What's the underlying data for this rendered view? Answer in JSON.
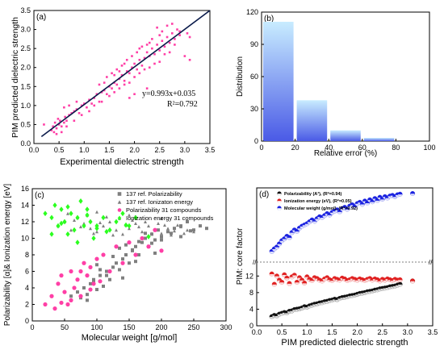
{
  "chart_data": [
    {
      "panel": "(a)",
      "type": "scatter",
      "xlabel": "Experimental  dielectric strength",
      "ylabel": "PIM predicted dielectric strength",
      "xlim": [
        0.0,
        3.5
      ],
      "ylim": [
        0.0,
        3.5
      ],
      "xticks": [
        "0.0",
        "0.5",
        "1.0",
        "1.5",
        "2.0",
        "2.5",
        "3.0",
        "3.5"
      ],
      "yticks": [
        "0.0",
        "0.5",
        "1.0",
        "1.5",
        "2.0",
        "2.5",
        "3.0",
        "3.5"
      ],
      "fit_label": "y=0.993x+0.035",
      "r2_label": "R²=0.792",
      "fit": {
        "slope": 0.993,
        "intercept": 0.035
      },
      "colors": {
        "points": "#ff3fa6",
        "line": "#0a1a4a"
      },
      "x": [
        0.2,
        0.35,
        0.38,
        0.4,
        0.42,
        0.45,
        0.48,
        0.5,
        0.52,
        0.55,
        0.6,
        0.62,
        0.65,
        0.7,
        0.75,
        0.8,
        0.85,
        0.9,
        0.95,
        1.0,
        1.05,
        1.1,
        1.15,
        1.2,
        1.25,
        1.3,
        1.35,
        1.4,
        1.45,
        1.5,
        1.55,
        1.6,
        1.65,
        1.7,
        1.75,
        1.8,
        1.85,
        1.9,
        1.95,
        2.0,
        2.05,
        2.1,
        2.15,
        2.2,
        2.25,
        2.3,
        2.35,
        2.4,
        2.45,
        2.5,
        2.55,
        2.6,
        2.65,
        2.7,
        2.75,
        2.8,
        2.85,
        2.9,
        3.0,
        3.1,
        0.45,
        0.55,
        0.65,
        0.8,
        0.95,
        1.1,
        1.2,
        1.35,
        1.5,
        1.6,
        1.7,
        1.8,
        1.9,
        2.0,
        2.1,
        2.2,
        2.3,
        2.4,
        2.5,
        2.6,
        2.7,
        2.8,
        3.05,
        3.1,
        1.45,
        1.55,
        1.65,
        1.75,
        1.85,
        1.95,
        2.05,
        2.15,
        2.25,
        2.35,
        1.3,
        1.4,
        1.6,
        1.7,
        1.8,
        2.1,
        2.3,
        2.5,
        2.65,
        2.45,
        2.55,
        2.75,
        2.9,
        2.25,
        2.0,
        1.9,
        0.6,
        0.7,
        0.85
      ],
      "y": [
        0.5,
        0.35,
        0.45,
        0.3,
        0.55,
        0.4,
        0.65,
        0.5,
        0.6,
        0.45,
        0.55,
        0.7,
        0.6,
        0.75,
        0.8,
        0.85,
        0.9,
        0.8,
        1.0,
        1.05,
        0.95,
        1.15,
        1.05,
        1.2,
        1.3,
        1.1,
        1.35,
        1.4,
        1.3,
        1.5,
        1.45,
        1.6,
        1.55,
        1.7,
        1.8,
        1.65,
        1.9,
        1.85,
        2.0,
        2.1,
        1.95,
        2.2,
        2.05,
        2.25,
        2.4,
        2.3,
        2.5,
        2.35,
        2.6,
        2.45,
        2.7,
        2.55,
        2.8,
        2.65,
        2.9,
        2.75,
        3.0,
        2.85,
        2.3,
        2.2,
        0.25,
        0.3,
        0.45,
        0.6,
        0.75,
        0.85,
        1.0,
        1.1,
        1.25,
        1.35,
        1.45,
        1.55,
        1.6,
        1.75,
        1.85,
        1.95,
        2.0,
        2.1,
        2.15,
        2.35,
        2.4,
        2.6,
        2.9,
        2.8,
        1.75,
        1.85,
        1.95,
        2.05,
        2.2,
        2.3,
        2.4,
        2.55,
        2.6,
        2.75,
        1.55,
        1.6,
        1.8,
        1.9,
        2.1,
        2.5,
        2.65,
        2.85,
        3.1,
        3.05,
        2.95,
        3.15,
        2.95,
        1.45,
        1.3,
        1.2,
        0.95,
        1.0,
        1.1
      ]
    },
    {
      "panel": "(b)",
      "type": "bar",
      "xlabel": "Relative error (%)",
      "ylabel": "Distribution",
      "xlim": [
        0,
        100
      ],
      "ylim": [
        0,
        120
      ],
      "xticks": [
        "0",
        "20",
        "40",
        "60",
        "80",
        "100"
      ],
      "yticks": [
        "0",
        "30",
        "60",
        "90",
        "120"
      ],
      "bins": [
        [
          0,
          20
        ],
        [
          20,
          40
        ],
        [
          40,
          60
        ],
        [
          60,
          80
        ]
      ],
      "values": [
        111,
        38,
        10,
        3
      ],
      "colors": {
        "top": "#c8ecff",
        "bottom": "#4a5ae6"
      }
    },
    {
      "panel": "(c)",
      "type": "scatter",
      "xlabel": "Molecular weight [g/mol]",
      "ylabel": "Polarizability [α]& Ionization energy [eV]",
      "xlim": [
        0,
        300
      ],
      "ylim": [
        0,
        16
      ],
      "xticks": [
        "0",
        "50",
        "100",
        "150",
        "200",
        "250",
        "300"
      ],
      "yticks": [
        "0",
        "2",
        "4",
        "6",
        "8",
        "10",
        "12",
        "14",
        "16"
      ],
      "series": [
        {
          "name": "137 ref. Polarizability",
          "color": "#7f7f7f",
          "marker": "square",
          "x": [
            60,
            70,
            80,
            85,
            90,
            95,
            100,
            105,
            110,
            115,
            120,
            125,
            130,
            135,
            140,
            145,
            150,
            155,
            160,
            165,
            170,
            175,
            180,
            185,
            190,
            195,
            200,
            210,
            220,
            230,
            240,
            250,
            260,
            270,
            85,
            95,
            105,
            115,
            125,
            135,
            145,
            155,
            165,
            175,
            185,
            200,
            215,
            230,
            245,
            75,
            100,
            140,
            160,
            190
          ],
          "y": [
            3.0,
            3.5,
            4.0,
            2.5,
            4.5,
            5.0,
            3.8,
            5.5,
            4.2,
            6.0,
            5.0,
            6.5,
            7.0,
            6.2,
            7.5,
            8.0,
            7.0,
            8.5,
            9.0,
            8.0,
            9.5,
            10.0,
            9.0,
            10.5,
            9.8,
            11.0,
            10.2,
            10.8,
            11.2,
            11.5,
            12.0,
            11.0,
            11.5,
            11.2,
            3.2,
            4.8,
            6.2,
            5.5,
            7.8,
            8.8,
            9.2,
            8.6,
            9.6,
            10.6,
            9.4,
            9.8,
            10.6,
            10.2,
            10.9,
            2.8,
            6.8,
            5.2,
            7.2,
            8.2
          ]
        },
        {
          "name": "137 ref. Ionizaton energy",
          "color": "#7f7f7f",
          "marker": "triangle",
          "x": [
            40,
            50,
            60,
            70,
            80,
            90,
            100,
            110,
            120,
            130,
            140,
            150,
            160,
            170,
            180,
            190,
            200,
            210,
            220,
            230,
            240,
            250,
            65,
            75,
            85,
            95,
            105,
            115,
            125,
            135,
            145,
            155,
            165,
            175,
            185,
            195,
            205,
            215,
            225,
            235,
            55,
            100,
            150,
            200
          ],
          "y": [
            11.5,
            12.0,
            11.0,
            12.5,
            11.8,
            11.2,
            10.8,
            11.5,
            12.0,
            11.0,
            10.5,
            11.2,
            11.8,
            10.8,
            11.5,
            11.0,
            10.6,
            11.2,
            10.9,
            11.4,
            11.0,
            10.8,
            12.2,
            11.4,
            12.8,
            10.6,
            11.9,
            12.6,
            10.4,
            12.4,
            11.6,
            12.2,
            11.4,
            12.0,
            10.6,
            11.8,
            11.6,
            10.4,
            11.6,
            10.6,
            13.0,
            13.2,
            12.8,
            12.4
          ]
        },
        {
          "name": "Polarizability 31 compounds",
          "color": "#ff3fa6",
          "marker": "circle",
          "x": [
            20,
            30,
            35,
            40,
            45,
            50,
            55,
            60,
            65,
            70,
            75,
            80,
            85,
            90,
            95,
            100,
            110,
            120,
            130,
            140,
            150,
            160,
            170,
            180,
            190,
            200,
            45,
            60,
            75,
            90,
            105
          ],
          "y": [
            2.0,
            3.0,
            1.5,
            4.5,
            2.2,
            3.5,
            2.0,
            6.0,
            4.0,
            5.0,
            3.0,
            7.0,
            5.5,
            6.5,
            4.5,
            7.5,
            8.0,
            6.0,
            9.0,
            7.0,
            9.5,
            8.0,
            10.0,
            9.0,
            11.0,
            8.5,
            5.5,
            2.5,
            6.0,
            3.8,
            4.8
          ]
        },
        {
          "name": "Ionization energy 31 compounds",
          "color": "#2bff1f",
          "marker": "diamond",
          "x": [
            20,
            30,
            35,
            40,
            45,
            50,
            55,
            60,
            65,
            70,
            75,
            80,
            85,
            90,
            95,
            100,
            110,
            120,
            130,
            140,
            150,
            160,
            30,
            45,
            55,
            70,
            85,
            100,
            115,
            145,
            180
          ],
          "y": [
            13.0,
            12.5,
            14.0,
            11.5,
            13.5,
            12.0,
            10.5,
            13.0,
            11.0,
            12.5,
            14.5,
            11.5,
            13.5,
            12.0,
            10.0,
            11.5,
            12.5,
            11.0,
            12.0,
            13.0,
            11.5,
            12.5,
            10.5,
            11.8,
            13.8,
            9.5,
            12.8,
            11.2,
            10.8,
            11.6,
            10.2
          ]
        }
      ]
    },
    {
      "panel": "(d)",
      "type": "scatter",
      "xlabel": "PIM predicted dielectric strength",
      "ylabel": "PIM: core factor",
      "xlim": [
        0.0,
        3.5
      ],
      "xticks": [
        "0.0",
        "0.5",
        "1.0",
        "1.5",
        "2.0",
        "2.5",
        "3.0",
        "3.5"
      ],
      "yticks_lower": [
        "0",
        "4",
        "8",
        "12"
      ],
      "ylim_lower": [
        0,
        14
      ],
      "axis_break": true,
      "series": [
        {
          "name": "Polarizability (A³), (R²=0.94)",
          "color": "#111111",
          "x": [
            0.3,
            0.35,
            0.4,
            0.45,
            0.5,
            0.55,
            0.6,
            0.65,
            0.7,
            0.75,
            0.8,
            0.85,
            0.9,
            0.95,
            1.0,
            1.05,
            1.1,
            1.15,
            1.2,
            1.25,
            1.3,
            1.35,
            1.4,
            1.45,
            1.5,
            1.55,
            1.6,
            1.65,
            1.7,
            1.75,
            1.8,
            1.85,
            1.9,
            1.95,
            2.0,
            2.05,
            2.1,
            2.15,
            2.2,
            2.25,
            2.3,
            2.35,
            2.4,
            2.45,
            2.5,
            2.55,
            2.6,
            2.65,
            2.7,
            2.75,
            2.8,
            2.85,
            3.1
          ],
          "y": [
            2.2,
            2.5,
            2.4,
            2.8,
            3.0,
            3.2,
            3.1,
            3.5,
            3.6,
            3.9,
            4.0,
            4.1,
            4.3,
            4.6,
            4.5,
            4.8,
            5.0,
            5.2,
            5.3,
            5.5,
            5.6,
            5.8,
            5.9,
            6.1,
            6.2,
            6.4,
            6.3,
            6.6,
            6.8,
            6.9,
            7.0,
            7.2,
            7.3,
            7.4,
            7.6,
            7.8,
            7.9,
            8.0,
            8.2,
            8.3,
            8.4,
            8.6,
            8.7,
            8.9,
            9.0,
            9.1,
            9.2,
            9.4,
            9.5,
            9.6,
            9.8,
            10.0,
            10.8
          ]
        },
        {
          "name": "Ionization energy (eV), (R²=0.05)",
          "color": "#e02020",
          "x": [
            0.3,
            0.35,
            0.4,
            0.45,
            0.5,
            0.55,
            0.6,
            0.65,
            0.7,
            0.75,
            0.8,
            0.85,
            0.9,
            0.95,
            1.0,
            1.05,
            1.1,
            1.15,
            1.2,
            1.25,
            1.3,
            1.35,
            1.4,
            1.45,
            1.5,
            1.55,
            1.6,
            1.65,
            1.7,
            1.75,
            1.8,
            1.85,
            1.9,
            1.95,
            2.0,
            2.05,
            2.1,
            2.15,
            2.2,
            2.25,
            2.3,
            2.35,
            2.4,
            2.45,
            2.5,
            2.55,
            2.6,
            2.65,
            2.7,
            2.75,
            2.8,
            2.85,
            3.1
          ],
          "y": [
            12.5,
            10.0,
            12.0,
            11.0,
            10.5,
            12.3,
            11.5,
            10.2,
            11.8,
            12.2,
            10.5,
            11.6,
            11.0,
            10.3,
            11.8,
            11.2,
            10.9,
            11.6,
            11.4,
            11.0,
            10.8,
            11.3,
            11.6,
            11.1,
            10.9,
            11.4,
            11.2,
            11.0,
            11.5,
            11.3,
            10.9,
            11.1,
            11.4,
            11.2,
            11.0,
            11.3,
            11.1,
            10.9,
            11.2,
            11.4,
            11.0,
            11.3,
            11.1,
            10.8,
            11.2,
            11.0,
            11.3,
            11.1,
            10.9,
            11.2,
            11.0,
            11.1,
            10.8
          ]
        },
        {
          "name": "Molecular weight (g/mol), (R²=0.92)",
          "color": "#1a22e0",
          "x": [
            0.3,
            0.35,
            0.4,
            0.45,
            0.5,
            0.55,
            0.6,
            0.65,
            0.7,
            0.75,
            0.8,
            0.85,
            0.9,
            0.95,
            1.0,
            1.05,
            1.1,
            1.15,
            1.2,
            1.25,
            1.3,
            1.35,
            1.4,
            1.45,
            1.5,
            1.55,
            1.6,
            1.65,
            1.7,
            1.75,
            1.8,
            1.85,
            1.9,
            1.95,
            2.0,
            2.05,
            2.1,
            2.15,
            2.2,
            2.25,
            2.3,
            2.35,
            2.4,
            2.45,
            2.5,
            2.55,
            2.6,
            2.65,
            2.7,
            2.75,
            2.8,
            2.85,
            3.1
          ],
          "y": [
            0.08,
            0.12,
            0.15,
            0.2,
            0.25,
            0.28,
            0.32,
            0.3,
            0.38,
            0.42,
            0.4,
            0.45,
            0.48,
            0.5,
            0.52,
            0.55,
            0.58,
            0.56,
            0.6,
            0.63,
            0.62,
            0.65,
            0.68,
            0.66,
            0.7,
            0.72,
            0.74,
            0.71,
            0.76,
            0.78,
            0.75,
            0.8,
            0.82,
            0.79,
            0.84,
            0.86,
            0.83,
            0.88,
            0.85,
            0.9,
            0.87,
            0.92,
            0.89,
            0.94,
            0.91,
            0.95,
            0.93,
            0.96,
            0.97,
            0.95,
            0.98,
            0.99,
            1.0
          ]
        }
      ]
    }
  ],
  "legend_c": [
    {
      "label": "137 ref. Polarizability",
      "color": "#7f7f7f",
      "marker": "square"
    },
    {
      "label": "137 ref. Ionizaton energy",
      "color": "#7f7f7f",
      "marker": "triangle"
    },
    {
      "label": "Polarizability 31 compounds",
      "color": "#ff3fa6",
      "marker": "circle"
    },
    {
      "label": "Ionization energy 31 compounds",
      "color": "#2bff1f",
      "marker": "diamond"
    }
  ],
  "legend_d": [
    {
      "label": "Polarizability (A³), (R²=0.94)",
      "color": "#111111"
    },
    {
      "label": "Ionization energy (eV), (R²=0.05)",
      "color": "#e02020"
    },
    {
      "label": "Molecular weight (g/mol), (R²=0.92)",
      "color": "#1a22e0"
    }
  ]
}
